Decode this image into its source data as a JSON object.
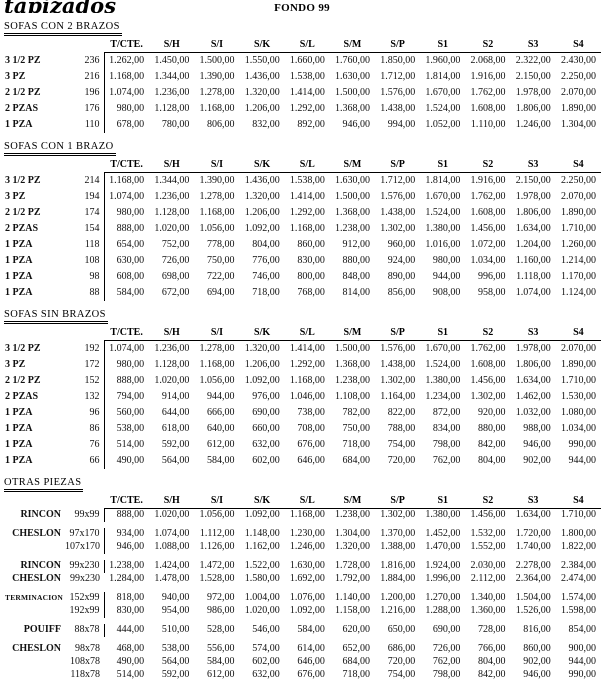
{
  "page": {
    "logo": "tapizados",
    "title": "FONDO 99"
  },
  "columns": [
    "T/CTE.",
    "S/H",
    "S/I",
    "S/K",
    "S/L",
    "S/M",
    "S/P",
    "S1",
    "S2",
    "S3",
    "S4"
  ],
  "sections": [
    {
      "title": "SOFAS CON 2 BRAZOS",
      "compact": false,
      "rows": [
        {
          "name": "3 1/2 PZ",
          "size": "236",
          "prices": [
            "1.262,00",
            "1.450,00",
            "1.500,00",
            "1.550,00",
            "1.660,00",
            "1.760,00",
            "1.850,00",
            "1.960,00",
            "2.068,00",
            "2.322,00",
            "2.430,00"
          ]
        },
        {
          "name": "3 PZ",
          "size": "216",
          "prices": [
            "1.168,00",
            "1.344,00",
            "1.390,00",
            "1.436,00",
            "1.538,00",
            "1.630,00",
            "1.712,00",
            "1.814,00",
            "1.916,00",
            "2.150,00",
            "2.250,00"
          ]
        },
        {
          "name": "2 1/2 PZ",
          "size": "196",
          "prices": [
            "1.074,00",
            "1.236,00",
            "1.278,00",
            "1.320,00",
            "1.414,00",
            "1.500,00",
            "1.576,00",
            "1.670,00",
            "1.762,00",
            "1.978,00",
            "2.070,00"
          ]
        },
        {
          "name": "2 PZAS",
          "size": "176",
          "prices": [
            "980,00",
            "1.128,00",
            "1.168,00",
            "1.206,00",
            "1.292,00",
            "1.368,00",
            "1.438,00",
            "1.524,00",
            "1.608,00",
            "1.806,00",
            "1.890,00"
          ]
        },
        {
          "name": "1 PZA",
          "size": "110",
          "prices": [
            "678,00",
            "780,00",
            "806,00",
            "832,00",
            "892,00",
            "946,00",
            "994,00",
            "1.052,00",
            "1.110,00",
            "1.246,00",
            "1.304,00"
          ]
        }
      ]
    },
    {
      "title": "SOFAS CON 1 BRAZO",
      "compact": false,
      "rows": [
        {
          "name": "3 1/2 PZ",
          "size": "214",
          "prices": [
            "1.168,00",
            "1.344,00",
            "1.390,00",
            "1.436,00",
            "1.538,00",
            "1.630,00",
            "1.712,00",
            "1.814,00",
            "1.916,00",
            "2.150,00",
            "2.250,00"
          ]
        },
        {
          "name": "3 PZ",
          "size": "194",
          "prices": [
            "1.074,00",
            "1.236,00",
            "1.278,00",
            "1.320,00",
            "1.414,00",
            "1.500,00",
            "1.576,00",
            "1.670,00",
            "1.762,00",
            "1.978,00",
            "2.070,00"
          ]
        },
        {
          "name": "2 1/2 PZ",
          "size": "174",
          "prices": [
            "980,00",
            "1.128,00",
            "1.168,00",
            "1.206,00",
            "1.292,00",
            "1.368,00",
            "1.438,00",
            "1.524,00",
            "1.608,00",
            "1.806,00",
            "1.890,00"
          ]
        },
        {
          "name": "2 PZAS",
          "size": "154",
          "prices": [
            "888,00",
            "1.020,00",
            "1.056,00",
            "1.092,00",
            "1.168,00",
            "1.238,00",
            "1.302,00",
            "1.380,00",
            "1.456,00",
            "1.634,00",
            "1.710,00"
          ]
        },
        {
          "name": "1 PZA",
          "size": "118",
          "prices": [
            "654,00",
            "752,00",
            "778,00",
            "804,00",
            "860,00",
            "912,00",
            "960,00",
            "1.016,00",
            "1.072,00",
            "1.204,00",
            "1.260,00"
          ]
        },
        {
          "name": "1 PZA",
          "size": "108",
          "prices": [
            "630,00",
            "726,00",
            "750,00",
            "776,00",
            "830,00",
            "880,00",
            "924,00",
            "980,00",
            "1.034,00",
            "1.160,00",
            "1.214,00"
          ]
        },
        {
          "name": "1 PZA",
          "size": "98",
          "prices": [
            "608,00",
            "698,00",
            "722,00",
            "746,00",
            "800,00",
            "848,00",
            "890,00",
            "944,00",
            "996,00",
            "1.118,00",
            "1.170,00"
          ]
        },
        {
          "name": "1 PZA",
          "size": "88",
          "prices": [
            "584,00",
            "672,00",
            "694,00",
            "718,00",
            "768,00",
            "814,00",
            "856,00",
            "908,00",
            "958,00",
            "1.074,00",
            "1.124,00"
          ]
        }
      ]
    },
    {
      "title": "SOFAS SIN BRAZOS",
      "compact": false,
      "rows": [
        {
          "name": "3 1/2 PZ",
          "size": "192",
          "prices": [
            "1.074,00",
            "1.236,00",
            "1.278,00",
            "1.320,00",
            "1.414,00",
            "1.500,00",
            "1.576,00",
            "1.670,00",
            "1.762,00",
            "1.978,00",
            "2.070,00"
          ]
        },
        {
          "name": "3 PZ",
          "size": "172",
          "prices": [
            "980,00",
            "1.128,00",
            "1.168,00",
            "1.206,00",
            "1.292,00",
            "1.368,00",
            "1.438,00",
            "1.524,00",
            "1.608,00",
            "1.806,00",
            "1.890,00"
          ]
        },
        {
          "name": "2 1/2 PZ",
          "size": "152",
          "prices": [
            "888,00",
            "1.020,00",
            "1.056,00",
            "1.092,00",
            "1.168,00",
            "1.238,00",
            "1.302,00",
            "1.380,00",
            "1.456,00",
            "1.634,00",
            "1.710,00"
          ]
        },
        {
          "name": "2 PZAS",
          "size": "132",
          "prices": [
            "794,00",
            "914,00",
            "944,00",
            "976,00",
            "1.046,00",
            "1.108,00",
            "1.164,00",
            "1.234,00",
            "1.302,00",
            "1.462,00",
            "1.530,00"
          ]
        },
        {
          "name": "1 PZA",
          "size": "96",
          "prices": [
            "560,00",
            "644,00",
            "666,00",
            "690,00",
            "738,00",
            "782,00",
            "822,00",
            "872,00",
            "920,00",
            "1.032,00",
            "1.080,00"
          ]
        },
        {
          "name": "1 PZA",
          "size": "86",
          "prices": [
            "538,00",
            "618,00",
            "640,00",
            "660,00",
            "708,00",
            "750,00",
            "788,00",
            "834,00",
            "880,00",
            "988,00",
            "1.034,00"
          ]
        },
        {
          "name": "1 PZA",
          "size": "76",
          "prices": [
            "514,00",
            "592,00",
            "612,00",
            "632,00",
            "676,00",
            "718,00",
            "754,00",
            "798,00",
            "842,00",
            "946,00",
            "990,00"
          ]
        },
        {
          "name": "1 PZA",
          "size": "66",
          "prices": [
            "490,00",
            "564,00",
            "584,00",
            "602,00",
            "646,00",
            "684,00",
            "720,00",
            "762,00",
            "804,00",
            "902,00",
            "944,00"
          ]
        }
      ]
    },
    {
      "title": "OTRAS PIEZAS",
      "compact": true,
      "rows": [
        {
          "name": "RINCON",
          "size": "99x99",
          "bar": true,
          "prices": [
            "888,00",
            "1.020,00",
            "1.056,00",
            "1.092,00",
            "1.168,00",
            "1.238,00",
            "1.302,00",
            "1.380,00",
            "1.456,00",
            "1.634,00",
            "1.710,00"
          ]
        },
        {
          "name": "CHESLON",
          "size": "97x170",
          "bar": true,
          "gap_before": true,
          "prices": [
            "934,00",
            "1.074,00",
            "1.112,00",
            "1.148,00",
            "1.230,00",
            "1.304,00",
            "1.370,00",
            "1.452,00",
            "1.532,00",
            "1.720,00",
            "1.800,00"
          ]
        },
        {
          "name": "",
          "size": "107x170",
          "bar": true,
          "prices": [
            "946,00",
            "1.088,00",
            "1.126,00",
            "1.162,00",
            "1.246,00",
            "1.320,00",
            "1.388,00",
            "1.470,00",
            "1.552,00",
            "1.740,00",
            "1.822,00"
          ]
        },
        {
          "name": "RINCON",
          "size": "99x230",
          "bar": true,
          "gap_before": true,
          "prices": [
            "1.238,00",
            "1.424,00",
            "1.472,00",
            "1.522,00",
            "1.630,00",
            "1.728,00",
            "1.816,00",
            "1.924,00",
            "2.030,00",
            "2.278,00",
            "2.384,00"
          ]
        },
        {
          "name": "CHESLON",
          "size": "99x230",
          "bar": false,
          "prices": [
            "1.284,00",
            "1.478,00",
            "1.528,00",
            "1.580,00",
            "1.692,00",
            "1.792,00",
            "1.884,00",
            "1.996,00",
            "2.112,00",
            "2.364,00",
            "2.474,00"
          ]
        },
        {
          "name": "TERMINACION",
          "size": "152x99",
          "bar": true,
          "small": true,
          "gap_before": true,
          "prices": [
            "818,00",
            "940,00",
            "972,00",
            "1.004,00",
            "1.076,00",
            "1.140,00",
            "1.200,00",
            "1.270,00",
            "1.340,00",
            "1.504,00",
            "1.574,00"
          ]
        },
        {
          "name": "",
          "size": "192x99",
          "bar": true,
          "prices": [
            "830,00",
            "954,00",
            "986,00",
            "1.020,00",
            "1.092,00",
            "1.158,00",
            "1.216,00",
            "1.288,00",
            "1.360,00",
            "1.526,00",
            "1.598,00"
          ]
        },
        {
          "name": "POUIFF",
          "size": "88x78",
          "bar": true,
          "gap_before": true,
          "prices": [
            "444,00",
            "510,00",
            "528,00",
            "546,00",
            "584,00",
            "620,00",
            "650,00",
            "690,00",
            "728,00",
            "816,00",
            "854,00"
          ]
        },
        {
          "name": "CHESLON",
          "size": "98x78",
          "bar": false,
          "gap_before": true,
          "prices": [
            "468,00",
            "538,00",
            "556,00",
            "574,00",
            "614,00",
            "652,00",
            "686,00",
            "726,00",
            "766,00",
            "860,00",
            "900,00"
          ]
        },
        {
          "name": "",
          "size": "108x78",
          "bar": false,
          "prices": [
            "490,00",
            "564,00",
            "584,00",
            "602,00",
            "646,00",
            "684,00",
            "720,00",
            "762,00",
            "804,00",
            "902,00",
            "944,00"
          ]
        },
        {
          "name": "",
          "size": "118x78",
          "bar": false,
          "prices": [
            "514,00",
            "592,00",
            "612,00",
            "632,00",
            "676,00",
            "718,00",
            "754,00",
            "798,00",
            "842,00",
            "946,00",
            "990,00"
          ]
        }
      ]
    }
  ]
}
